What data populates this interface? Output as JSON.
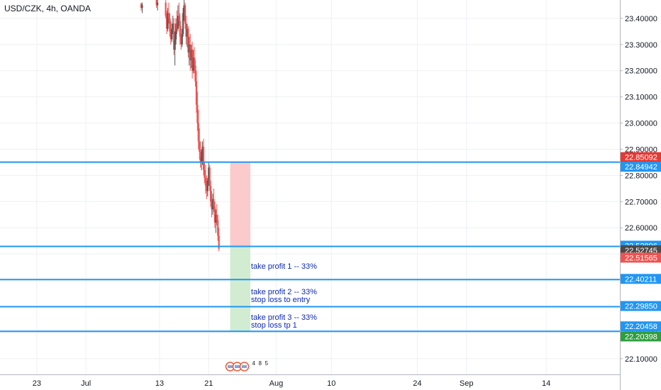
{
  "header": {
    "symbol_title": "USD/CZK, 4h, OANDA"
  },
  "colors": {
    "up": "#26a69a",
    "down": "#ef5350",
    "candle_dark": "#555555",
    "level_line": "#2196f3",
    "annotation_text": "#0d2bb5",
    "stop_zone": "#fbcaca",
    "target_zone": "#d2ecd2"
  },
  "chart_data": {
    "type": "candlestick",
    "title": "USD/CZK, 4h, OANDA",
    "ylim": [
      22.04,
      23.47
    ],
    "y_ticks": [
      "22.10000",
      "22.20000",
      "22.30000",
      "22.40000",
      "22.50000",
      "22.60000",
      "22.70000",
      "22.80000",
      "22.90000",
      "23.00000",
      "23.10000",
      "23.20000",
      "23.30000",
      "23.40000"
    ],
    "x_ticks": [
      {
        "label": "23",
        "day": 23
      },
      {
        "label": "Jul",
        "day": 31
      },
      {
        "label": "13",
        "day": 43
      },
      {
        "label": "21",
        "day": 51
      },
      {
        "label": "Aug",
        "day": 62
      },
      {
        "label": "10",
        "day": 71
      },
      {
        "label": "24",
        "day": 85
      },
      {
        "label": "Sep",
        "day": 93
      },
      {
        "label": "14",
        "day": 106
      }
    ],
    "x_range_days": [
      17.0,
      118.0
    ],
    "candles": [
      [
        40.0,
        23.455,
        23.46,
        23.43,
        23.44
      ],
      [
        40.17,
        23.44,
        23.46,
        23.42,
        23.45
      ],
      [
        42.5,
        23.47,
        23.48,
        23.44,
        23.45
      ],
      [
        42.67,
        23.45,
        23.47,
        23.43,
        23.46
      ],
      [
        44.0,
        23.46,
        23.47,
        23.4,
        23.41
      ],
      [
        44.17,
        23.41,
        23.43,
        23.34,
        23.36
      ],
      [
        44.33,
        23.36,
        23.44,
        23.35,
        23.42
      ],
      [
        44.5,
        23.42,
        23.46,
        23.38,
        23.4
      ],
      [
        44.67,
        23.4,
        23.42,
        23.33,
        23.35
      ],
      [
        44.83,
        23.35,
        23.39,
        23.3,
        23.32
      ],
      [
        45.0,
        23.32,
        23.38,
        23.31,
        23.36
      ],
      [
        45.17,
        23.36,
        23.41,
        23.34,
        23.38
      ],
      [
        45.33,
        23.38,
        23.4,
        23.26,
        23.28
      ],
      [
        45.5,
        23.28,
        23.35,
        23.22,
        23.32
      ],
      [
        45.67,
        23.32,
        23.4,
        23.3,
        23.38
      ],
      [
        45.83,
        23.38,
        23.43,
        23.34,
        23.36
      ],
      [
        46.0,
        23.36,
        23.45,
        23.35,
        23.41
      ],
      [
        46.17,
        23.41,
        23.46,
        23.37,
        23.39
      ],
      [
        46.33,
        23.39,
        23.42,
        23.3,
        23.33
      ],
      [
        46.5,
        23.33,
        23.37,
        23.28,
        23.3
      ],
      [
        46.67,
        23.3,
        23.36,
        23.29,
        23.34
      ],
      [
        46.83,
        23.34,
        23.44,
        23.33,
        23.42
      ],
      [
        47.0,
        23.42,
        23.47,
        23.39,
        23.45
      ],
      [
        47.17,
        23.45,
        23.46,
        23.36,
        23.38
      ],
      [
        47.33,
        23.38,
        23.41,
        23.3,
        23.33
      ],
      [
        47.5,
        23.33,
        23.38,
        23.29,
        23.36
      ],
      [
        47.67,
        23.36,
        23.37,
        23.25,
        23.27
      ],
      [
        47.83,
        23.27,
        23.33,
        23.22,
        23.3
      ],
      [
        48.0,
        23.3,
        23.34,
        23.2,
        23.24
      ],
      [
        48.17,
        23.24,
        23.3,
        23.21,
        23.28
      ],
      [
        48.33,
        23.28,
        23.31,
        23.17,
        23.2
      ],
      [
        48.5,
        23.2,
        23.28,
        23.19,
        23.25
      ],
      [
        48.67,
        23.25,
        23.29,
        23.19,
        23.22
      ],
      [
        48.83,
        23.22,
        23.24,
        23.14,
        23.16
      ],
      [
        49.0,
        23.16,
        23.2,
        23.04,
        23.07
      ],
      [
        49.17,
        23.07,
        23.12,
        22.97,
        23.0
      ],
      [
        49.33,
        23.0,
        23.05,
        22.9,
        22.93
      ],
      [
        49.5,
        22.93,
        22.98,
        22.86,
        22.89
      ],
      [
        49.67,
        22.89,
        22.93,
        22.83,
        22.85
      ],
      [
        49.83,
        22.85,
        22.9,
        22.82,
        22.87
      ],
      [
        50.0,
        22.87,
        22.93,
        22.84,
        22.91
      ],
      [
        50.17,
        22.91,
        22.94,
        22.8,
        22.82
      ],
      [
        50.33,
        22.82,
        22.85,
        22.77,
        22.79
      ],
      [
        50.5,
        22.79,
        22.84,
        22.73,
        22.76
      ],
      [
        50.67,
        22.76,
        22.8,
        22.71,
        22.74
      ],
      [
        50.83,
        22.74,
        22.79,
        22.72,
        22.78
      ],
      [
        51.0,
        22.78,
        22.85,
        22.76,
        22.83
      ],
      [
        51.17,
        22.83,
        22.84,
        22.74,
        22.76
      ],
      [
        51.33,
        22.76,
        22.78,
        22.68,
        22.7
      ],
      [
        51.5,
        22.7,
        22.74,
        22.64,
        22.67
      ],
      [
        51.67,
        22.67,
        22.73,
        22.65,
        22.71
      ],
      [
        51.83,
        22.71,
        22.75,
        22.66,
        22.68
      ],
      [
        52.0,
        22.68,
        22.7,
        22.6,
        22.62
      ],
      [
        52.17,
        22.62,
        22.67,
        22.58,
        22.65
      ],
      [
        52.33,
        22.65,
        22.69,
        22.61,
        22.63
      ],
      [
        52.5,
        22.63,
        22.65,
        22.55,
        22.57
      ],
      [
        52.67,
        22.57,
        22.6,
        22.51,
        22.52
      ]
    ],
    "levels": [
      {
        "price": 22.85092,
        "label": "22.85092",
        "tag_color": "#e53935"
      },
      {
        "price": 22.84942,
        "label": "22.84942",
        "tag_color": "#2196f3"
      },
      {
        "price": 22.52896,
        "label": "22.52896",
        "tag_color": "#2196f3"
      },
      {
        "price": 22.52745,
        "label": "22.52745",
        "tag_color": "#4a4a4a"
      },
      {
        "price": 22.51565,
        "label": "22.51565",
        "tag_color": "#ef5350"
      },
      {
        "price": 22.40211,
        "label": "22.40211",
        "tag_color": "#2196f3"
      },
      {
        "price": 22.2985,
        "label": "22.29850",
        "tag_color": "#2196f3"
      },
      {
        "price": 22.20458,
        "label": "22.20458",
        "tag_color": "#2196f3"
      },
      {
        "price": 22.20398,
        "label": "22.20398",
        "tag_color": "#2e9e3e"
      }
    ],
    "horizontal_lines": [
      22.85092,
      22.52896,
      22.40211,
      22.2985,
      22.20458
    ],
    "current_price": 22.52745,
    "position": {
      "start_day": 54.5,
      "end_day": 57.8,
      "entry": 22.52896,
      "stop": 22.85092,
      "target": 22.20458
    },
    "annotations": [
      {
        "lines": [
          "take profit 1 -- 33%"
        ],
        "day": 57.9,
        "price": 22.443
      },
      {
        "lines": [
          "take profit 2 -- 33%",
          "stop loss to entry"
        ],
        "day": 57.9,
        "price": 22.346
      },
      {
        "lines": [
          "take profit 3 -- 33%",
          "stop loss tp 1"
        ],
        "day": 57.9,
        "price": 22.248
      }
    ],
    "events_badge": {
      "day": 56.0,
      "labels": [
        "4",
        "8",
        "5"
      ]
    }
  }
}
